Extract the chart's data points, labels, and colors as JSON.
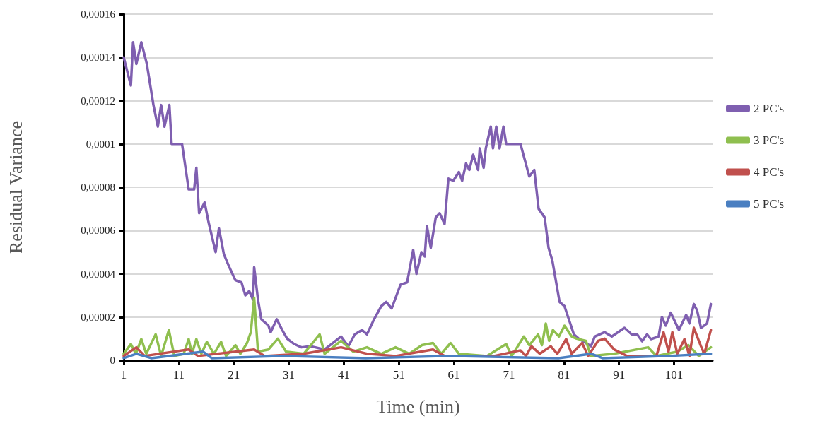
{
  "chart_data": {
    "type": "line",
    "xlabel": "Time (min)",
    "ylabel": "Residual Variance",
    "xlim": [
      1,
      108
    ],
    "xticks": [
      1,
      11,
      21,
      31,
      41,
      51,
      61,
      71,
      81,
      91,
      101
    ],
    "ylim": [
      0,
      0.00016
    ],
    "yticks": [
      {
        "value": 0,
        "label": "0"
      },
      {
        "value": 2e-05,
        "label": "0,00002"
      },
      {
        "value": 4e-05,
        "label": "0,00004"
      },
      {
        "value": 6e-05,
        "label": "0,00006"
      },
      {
        "value": 8e-05,
        "label": "0,00008"
      },
      {
        "value": 0.0001,
        "label": "0,0001"
      },
      {
        "value": 0.00012,
        "label": "0,00012"
      },
      {
        "value": 0.00014,
        "label": "0,00014"
      },
      {
        "value": 0.00016,
        "label": "0,00016"
      }
    ],
    "grid": "y",
    "legend": "right",
    "marker": "none",
    "line_style": "solid",
    "series": [
      {
        "name": "2 PC's",
        "color": "#7f5fb0",
        "x": [
          1,
          2.3,
          2.7,
          3.3,
          4.2,
          5.2,
          6.4,
          7.2,
          7.8,
          8.4,
          9.3,
          9.7,
          11.6,
          12.8,
          13.8,
          14.2,
          14.7,
          15.7,
          16.4,
          17.7,
          18.3,
          19.2,
          20.2,
          21.3,
          22.4,
          23.1,
          23.8,
          24.5,
          24.7,
          25.4,
          26,
          27.3,
          27.7,
          28.8,
          29.8,
          30.7,
          32,
          33.3,
          35,
          37.5,
          40.5,
          41.8,
          43,
          44.3,
          45.2,
          46.5,
          47.8,
          48.7,
          49.7,
          51.3,
          52.5,
          53.6,
          54.2,
          55.1,
          55.7,
          56.1,
          56.8,
          57.7,
          58.4,
          59.3,
          60,
          60.9,
          61.9,
          62.5,
          63.2,
          63.8,
          64.5,
          65.4,
          65.7,
          66.4,
          66.8,
          67.7,
          68.1,
          68.7,
          69.3,
          70,
          70.5,
          73.1,
          74.7,
          75.6,
          76.4,
          77.5,
          78.2,
          78.9,
          80.2,
          81.1,
          82.8,
          83.7,
          85.9,
          86.6,
          88.4,
          89.7,
          92,
          93.3,
          94.3,
          95.2,
          96.1,
          96.8,
          98.2,
          98.8,
          99.5,
          100.4,
          101.9,
          103.2,
          103.8,
          104.6,
          105.2,
          105.9,
          107,
          107.7
        ],
        "values": [
          0.00014,
          0.000127,
          0.000147,
          0.000137,
          0.000147,
          0.000137,
          0.000118,
          0.000108,
          0.000118,
          0.000108,
          0.000118,
          0.0001,
          0.0001,
          7.9e-05,
          7.9e-05,
          8.9e-05,
          6.8e-05,
          7.3e-05,
          6.4e-05,
          5e-05,
          6.1e-05,
          4.9e-05,
          4.3e-05,
          3.7e-05,
          3.6e-05,
          3e-05,
          3.2e-05,
          2.8e-05,
          4.3e-05,
          2.8e-05,
          1.9e-05,
          1.6e-05,
          1.3e-05,
          1.9e-05,
          1.4e-05,
          1e-05,
          7.5e-06,
          6e-06,
          6.5e-06,
          5e-06,
          1.1e-05,
          6.5e-06,
          1.2e-05,
          1.4e-05,
          1.2e-05,
          1.9e-05,
          2.5e-05,
          2.7e-05,
          2.4e-05,
          3.5e-05,
          3.6e-05,
          5.1e-05,
          4e-05,
          5e-05,
          4.8e-05,
          6.2e-05,
          5.2e-05,
          6.6e-05,
          6.8e-05,
          6.3e-05,
          8.4e-05,
          8.3e-05,
          8.7e-05,
          8.3e-05,
          9.1e-05,
          8.8e-05,
          9.5e-05,
          8.8e-05,
          9.8e-05,
          8.9e-05,
          9.8e-05,
          0.000108,
          9.8e-05,
          0.000108,
          9.8e-05,
          0.000108,
          0.0001,
          0.0001,
          8.5e-05,
          8.8e-05,
          7e-05,
          6.6e-05,
          5.2e-05,
          4.6e-05,
          2.7e-05,
          2.5e-05,
          1.2e-05,
          1e-05,
          6.5e-06,
          1.1e-05,
          1.3e-05,
          1.1e-05,
          1.5e-05,
          1.2e-05,
          1.2e-05,
          8.8e-06,
          1.2e-05,
          9.8e-06,
          1.1e-05,
          2e-05,
          1.6e-05,
          2.2e-05,
          1.4e-05,
          2.1e-05,
          1.7e-05,
          2.6e-05,
          2.3e-05,
          1.5e-05,
          1.7e-05,
          2.6e-05
        ]
      },
      {
        "name": "3 PC's",
        "color": "#8fbf4f",
        "x": [
          1,
          2.3,
          3.2,
          4.2,
          5.1,
          6.8,
          7.8,
          9.2,
          10.2,
          11.9,
          12.8,
          13.4,
          14.2,
          15.1,
          16.1,
          17.4,
          18.7,
          19.6,
          21.3,
          22.2,
          23.4,
          24.1,
          24.7,
          25.4,
          27.3,
          29,
          30.5,
          33.7,
          36.6,
          37.5,
          40.5,
          42.7,
          45.2,
          47.8,
          50.4,
          52.9,
          55.2,
          57.2,
          58.7,
          60.4,
          61.9,
          67,
          70.5,
          71.5,
          73.7,
          74.7,
          76.3,
          77,
          77.7,
          78.3,
          79,
          80.1,
          81.1,
          82.4,
          83.3,
          85,
          85.9,
          90.1,
          96.3,
          97.8,
          101.6,
          103.6,
          105.5,
          107.7
        ],
        "values": [
          3e-06,
          7.5e-06,
          3e-06,
          9.8e-06,
          3e-06,
          1.2e-05,
          2e-06,
          1.4e-05,
          2e-06,
          3e-06,
          9.8e-06,
          3e-06,
          9.8e-06,
          3e-06,
          8.5e-06,
          3e-06,
          8.5e-06,
          2e-06,
          7e-06,
          3e-06,
          8e-06,
          1.3e-05,
          2.9e-05,
          4e-06,
          5e-06,
          1e-05,
          4e-06,
          3e-06,
          1.2e-05,
          3e-06,
          9e-06,
          4e-06,
          6e-06,
          3e-06,
          6e-06,
          3e-06,
          7e-06,
          8e-06,
          3e-06,
          8e-06,
          3e-06,
          2e-06,
          7.5e-06,
          2e-06,
          1.1e-05,
          7e-06,
          1.2e-05,
          7e-06,
          1.7e-05,
          9e-06,
          1.4e-05,
          1.1e-05,
          1.6e-05,
          1.1e-05,
          1e-05,
          9e-06,
          2e-06,
          3e-06,
          6e-06,
          2e-06,
          4e-06,
          7e-06,
          2e-06,
          6e-06
        ]
      },
      {
        "name": "4 PC's",
        "color": "#c0504d",
        "x": [
          1,
          3.3,
          4.8,
          12.8,
          14.5,
          24.7,
          26.6,
          33.7,
          40.5,
          45.2,
          50.4,
          57.2,
          59.3,
          68.3,
          73.1,
          74.1,
          75.1,
          76.6,
          78.6,
          79.8,
          81.4,
          82.4,
          84.3,
          85.4,
          87.2,
          88.4,
          90.1,
          92.7,
          97.8,
          99.1,
          100,
          100.7,
          101.6,
          102.9,
          103.8,
          104.6,
          105.9,
          106.5,
          107.7
        ],
        "values": [
          2e-06,
          6e-06,
          2e-06,
          5e-06,
          2e-06,
          5e-06,
          2e-06,
          3e-06,
          6e-06,
          3e-06,
          2e-06,
          5e-06,
          2e-06,
          2e-06,
          4.6e-06,
          2e-06,
          6.5e-06,
          3e-06,
          6.5e-06,
          3e-06,
          9.8e-06,
          3e-06,
          8e-06,
          2e-06,
          9e-06,
          1e-05,
          5e-06,
          1.7e-06,
          2e-06,
          1.3e-05,
          4e-06,
          1.3e-05,
          3e-06,
          9.8e-06,
          2e-06,
          1.5e-05,
          6.5e-06,
          3e-06,
          1.4e-05
        ]
      },
      {
        "name": "5 PC's",
        "color": "#4a7fc1",
        "x": [
          1,
          3.3,
          6,
          15.4,
          17,
          30,
          45,
          60,
          80,
          86,
          88,
          100,
          107.7
        ],
        "values": [
          1e-06,
          3e-06,
          1e-06,
          4e-06,
          1e-06,
          2e-06,
          1e-06,
          2e-06,
          1e-06,
          3e-06,
          1e-06,
          2e-06,
          3e-06
        ]
      }
    ]
  }
}
